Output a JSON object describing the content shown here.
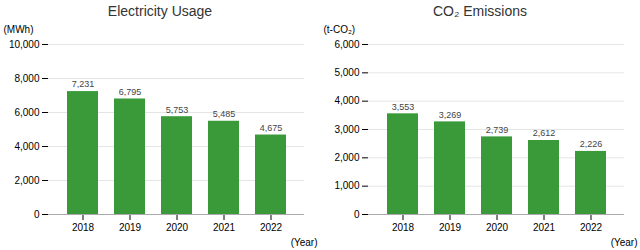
{
  "chart_data": [
    {
      "type": "bar",
      "title": "Electricity Usage",
      "categories": [
        "2018",
        "2019",
        "2020",
        "2021",
        "2022"
      ],
      "values": [
        7231,
        6795,
        5753,
        5485,
        4675
      ],
      "value_labels": [
        "7,231",
        "6,795",
        "5,753",
        "5,485",
        "4,675"
      ],
      "data_labels": true,
      "color": "#3a9a3a",
      "xlabel": "(Year)",
      "ylabel": "(MWh)",
      "ylim": [
        0,
        10000
      ],
      "yticks": [
        0,
        {
          "value": 2000,
          "label": "2,000"
        },
        {
          "value": 4000,
          "label": "4,000"
        },
        {
          "value": 6000,
          "label": "6,000"
        },
        {
          "value": 8000,
          "label": "8,000"
        },
        {
          "value": 10000,
          "label": "10,000"
        }
      ],
      "grid": true
    },
    {
      "type": "bar",
      "title": "CO₂ Emissions",
      "categories": [
        "2018",
        "2019",
        "2020",
        "2021",
        "2022"
      ],
      "values": [
        3553,
        3269,
        2739,
        2612,
        2226
      ],
      "value_labels": [
        "3,553",
        "3,269",
        "2,739",
        "2,612",
        "2,226"
      ],
      "data_labels": true,
      "color": "#3a9a3a",
      "xlabel": "(Year)",
      "ylabel": "(t-CO₂)",
      "ylim": [
        0,
        6000
      ],
      "yticks": [
        0,
        {
          "value": 1000,
          "label": "1,000"
        },
        {
          "value": 2000,
          "label": "2,000"
        },
        {
          "value": 3000,
          "label": "3,000"
        },
        {
          "value": 4000,
          "label": "4,000"
        },
        {
          "value": 5000,
          "label": "5,000"
        },
        {
          "value": 6000,
          "label": "6,000"
        }
      ],
      "grid": true
    }
  ]
}
